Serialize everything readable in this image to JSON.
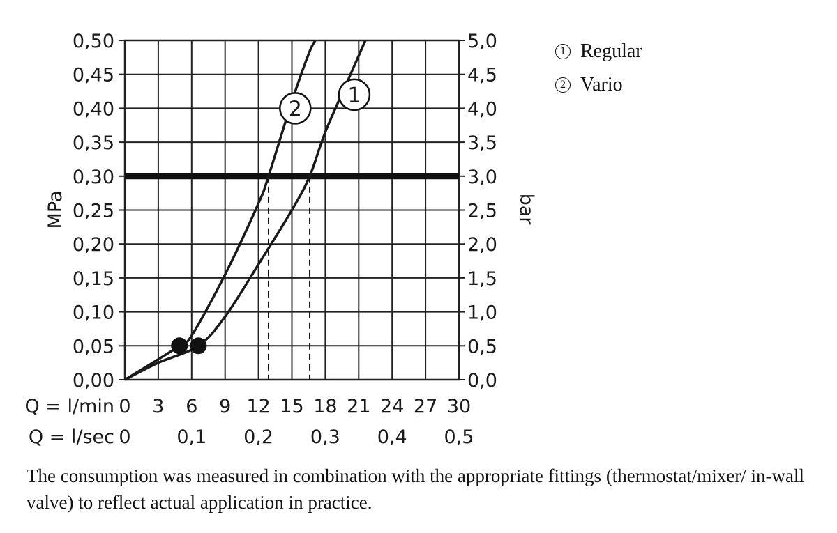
{
  "chart_data": {
    "type": "line",
    "title": "",
    "ylabel_left": "MPa",
    "ylabel_right": "bar",
    "x_rows": [
      {
        "label": "Q = l/min",
        "ticks": [
          "0",
          "3",
          "6",
          "9",
          "12",
          "15",
          "18",
          "21",
          "24",
          "27",
          "30"
        ],
        "values": [
          0,
          3,
          6,
          9,
          12,
          15,
          18,
          21,
          24,
          27,
          30
        ]
      },
      {
        "label": "Q = l/sec",
        "ticks": [
          "0",
          "0,1",
          "0,2",
          "0,3",
          "0,4",
          "0,5"
        ],
        "values": [
          0,
          6,
          12,
          18,
          24,
          30
        ]
      }
    ],
    "xlim": [
      0,
      30
    ],
    "ylim": [
      0,
      0.5
    ],
    "y_ticks_left": [
      "0,00",
      "0,05",
      "0,10",
      "0,15",
      "0,20",
      "0,25",
      "0,30",
      "0,35",
      "0,40",
      "0,45",
      "0,50"
    ],
    "y_ticks_right": [
      "0,0",
      "0,5",
      "1,0",
      "1,5",
      "2,0",
      "2,5",
      "3,0",
      "3,5",
      "4,0",
      "4,5",
      "5,0"
    ],
    "grid": true,
    "reference_line": {
      "y": 0.3
    },
    "series": [
      {
        "name": "Regular",
        "marker": "1",
        "x": [
          0,
          3,
          6.6,
          9,
          12,
          15,
          16.6,
          18,
          20,
          21.6
        ],
        "y": [
          0,
          0.025,
          0.05,
          0.093,
          0.17,
          0.25,
          0.3,
          0.365,
          0.44,
          0.5
        ],
        "point": {
          "x": 6.6,
          "y": 0.05
        },
        "label_at": {
          "x": 20.6,
          "y": 0.42
        }
      },
      {
        "name": "Vario",
        "marker": "2",
        "x": [
          0,
          3,
          4.9,
          6,
          9,
          12,
          12.9,
          15,
          16.5,
          17.1
        ],
        "y": [
          0,
          0.03,
          0.05,
          0.065,
          0.155,
          0.26,
          0.3,
          0.41,
          0.48,
          0.5
        ],
        "point": {
          "x": 4.9,
          "y": 0.05
        },
        "label_at": {
          "x": 15.3,
          "y": 0.4
        }
      }
    ],
    "dashed_markers": [
      {
        "x": 12.9,
        "y": 0.3
      },
      {
        "x": 16.6,
        "y": 0.3
      }
    ]
  },
  "legend": [
    {
      "num": "1",
      "label": "Regular"
    },
    {
      "num": "2",
      "label": "Vario"
    }
  ],
  "caption": "The consumption was measured in combination with the appropriate fittings (thermostat/mixer/ in-wall valve) to reflect actual application in practice."
}
